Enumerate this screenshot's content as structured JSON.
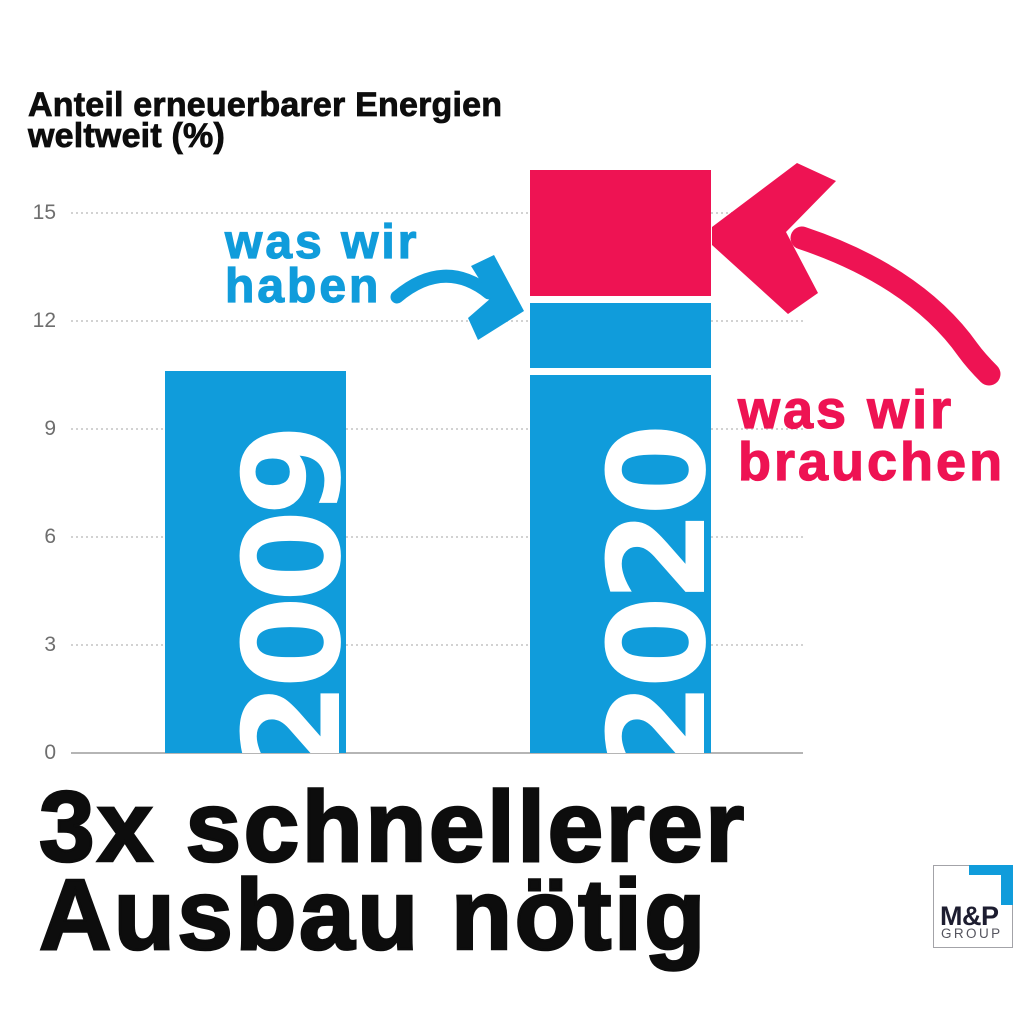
{
  "colors": {
    "blue": "#109CDB",
    "pink": "#EE1353",
    "ink": "#0d0d0d",
    "axis_label": "#6e6e6e",
    "gridline": "#d2d2d2",
    "baseline": "#b5b5b5",
    "bar_label": "#ffffff",
    "logo_dark": "#1d1d30",
    "logo_gray": "#55555f",
    "logo_border": "#a3a3a8",
    "background": "#ffffff"
  },
  "header": {
    "title_lines": [
      "Anteil erneuerbarer Energien",
      "weltweit (%)"
    ]
  },
  "chart_data": {
    "type": "bar",
    "title": "Anteil erneuerbarer Energien weltweit (%)",
    "xlabel": "",
    "ylabel": "Anteil erneuerbarer Energien weltweit (%)",
    "ylim": [
      0,
      16.5
    ],
    "yticks": [
      0,
      3,
      6,
      9,
      12,
      15
    ],
    "grid": true,
    "legend_position": "none",
    "categories": [
      "2009",
      "2020"
    ],
    "bars": [
      {
        "year": "2009",
        "total": 10.6,
        "segments": [
          {
            "from": 0,
            "to": 10.6,
            "color": "blue"
          }
        ]
      },
      {
        "year": "2020",
        "total": 16.2,
        "segments": [
          {
            "from": 0,
            "to": 10.5,
            "color": "blue"
          },
          {
            "from": 10.7,
            "to": 12.5,
            "color": "blue"
          },
          {
            "from": 12.7,
            "to": 16.2,
            "color": "pink"
          }
        ]
      }
    ],
    "annotations": [
      {
        "id": "have",
        "lines": [
          "was wir",
          "haben"
        ],
        "color": "blue"
      },
      {
        "id": "need",
        "lines": [
          "was wir",
          "brauchen"
        ],
        "color": "pink"
      }
    ]
  },
  "headline": {
    "lines": [
      "3x schnellerer",
      "Ausbau nötig"
    ]
  },
  "logo": {
    "name": "M&P",
    "subtitle": "GROUP"
  }
}
